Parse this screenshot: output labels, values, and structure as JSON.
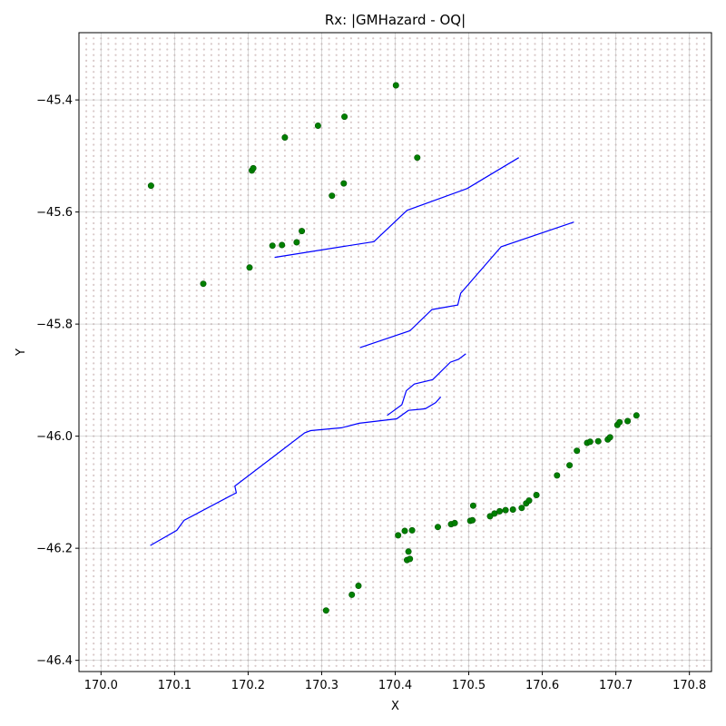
{
  "chart_data": {
    "type": "scatter",
    "title": "Rx: |GMHazard - OQ|",
    "xlabel": "X",
    "ylabel": "Y",
    "xlim": [
      169.97,
      170.83
    ],
    "ylim": [
      -46.42,
      -45.28
    ],
    "x_ticks": [
      170.0,
      170.1,
      170.2,
      170.3,
      170.4,
      170.5,
      170.6,
      170.7,
      170.8
    ],
    "x_tick_labels": [
      "170.0",
      "170.1",
      "170.2",
      "170.3",
      "170.4",
      "170.5",
      "170.6",
      "170.7",
      "170.8"
    ],
    "y_ticks": [
      -45.4,
      -45.6,
      -45.8,
      -46.0,
      -46.2,
      -46.4
    ],
    "y_tick_labels": [
      "−45.4",
      "−45.6",
      "−45.8",
      "−46.0",
      "−46.2",
      "−46.4"
    ],
    "grid": true,
    "colors": {
      "points": "#008000",
      "lines": "#0000ff",
      "background_grid": "#d9c9c9",
      "gridlines": "#b0b0b0"
    },
    "background_grid": {
      "x_step": 0.01,
      "y_step": 0.01
    },
    "points": [
      [
        170.068,
        -45.553
      ],
      [
        170.139,
        -45.728
      ],
      [
        170.202,
        -45.699
      ],
      [
        170.205,
        -45.526
      ],
      [
        170.207,
        -45.522
      ],
      [
        170.233,
        -45.66
      ],
      [
        170.246,
        -45.659
      ],
      [
        170.25,
        -45.467
      ],
      [
        170.266,
        -45.654
      ],
      [
        170.273,
        -45.634
      ],
      [
        170.295,
        -45.446
      ],
      [
        170.314,
        -45.571
      ],
      [
        170.33,
        -45.549
      ],
      [
        170.331,
        -45.43
      ],
      [
        170.401,
        -45.374
      ],
      [
        170.43,
        -45.503
      ],
      [
        170.306,
        -46.311
      ],
      [
        170.341,
        -46.283
      ],
      [
        170.35,
        -46.267
      ],
      [
        170.404,
        -46.177
      ],
      [
        170.413,
        -46.169
      ],
      [
        170.416,
        -46.221
      ],
      [
        170.418,
        -46.206
      ],
      [
        170.42,
        -46.219
      ],
      [
        170.423,
        -46.168
      ],
      [
        170.458,
        -46.162
      ],
      [
        170.476,
        -46.157
      ],
      [
        170.481,
        -46.155
      ],
      [
        170.502,
        -46.151
      ],
      [
        170.505,
        -46.15
      ],
      [
        170.506,
        -46.124
      ],
      [
        170.529,
        -46.143
      ],
      [
        170.535,
        -46.138
      ],
      [
        170.542,
        -46.134
      ],
      [
        170.55,
        -46.132
      ],
      [
        170.56,
        -46.131
      ],
      [
        170.572,
        -46.128
      ],
      [
        170.578,
        -46.12
      ],
      [
        170.582,
        -46.115
      ],
      [
        170.592,
        -46.105
      ],
      [
        170.62,
        -46.07
      ],
      [
        170.637,
        -46.052
      ],
      [
        170.647,
        -46.026
      ],
      [
        170.661,
        -46.012
      ],
      [
        170.665,
        -46.01
      ],
      [
        170.676,
        -46.009
      ],
      [
        170.689,
        -46.006
      ],
      [
        170.692,
        -46.002
      ],
      [
        170.702,
        -45.98
      ],
      [
        170.705,
        -45.975
      ],
      [
        170.716,
        -45.973
      ],
      [
        170.728,
        -45.963
      ]
    ],
    "lines": [
      [
        [
          170.236,
          -45.681
        ],
        [
          170.371,
          -45.653
        ],
        [
          170.416,
          -45.597
        ],
        [
          170.498,
          -45.558
        ],
        [
          170.568,
          -45.503
        ]
      ],
      [
        [
          170.352,
          -45.842
        ],
        [
          170.42,
          -45.812
        ],
        [
          170.45,
          -45.774
        ],
        [
          170.485,
          -45.766
        ],
        [
          170.489,
          -45.745
        ],
        [
          170.544,
          -45.662
        ],
        [
          170.643,
          -45.618
        ]
      ],
      [
        [
          170.067,
          -46.195
        ],
        [
          170.103,
          -46.168
        ],
        [
          170.113,
          -46.15
        ],
        [
          170.184,
          -46.101
        ],
        [
          170.182,
          -46.089
        ],
        [
          170.229,
          -46.042
        ],
        [
          170.277,
          -45.994
        ],
        [
          170.285,
          -45.99
        ],
        [
          170.327,
          -45.985
        ],
        [
          170.351,
          -45.977
        ],
        [
          170.402,
          -45.969
        ],
        [
          170.418,
          -45.954
        ],
        [
          170.434,
          -45.952
        ],
        [
          170.441,
          -45.951
        ],
        [
          170.455,
          -45.94
        ],
        [
          170.462,
          -45.93
        ]
      ],
      [
        [
          170.389,
          -45.963
        ],
        [
          170.409,
          -45.944
        ],
        [
          170.415,
          -45.919
        ],
        [
          170.426,
          -45.907
        ],
        [
          170.451,
          -45.899
        ],
        [
          170.475,
          -45.868
        ],
        [
          170.486,
          -45.863
        ],
        [
          170.496,
          -45.853
        ]
      ]
    ]
  }
}
